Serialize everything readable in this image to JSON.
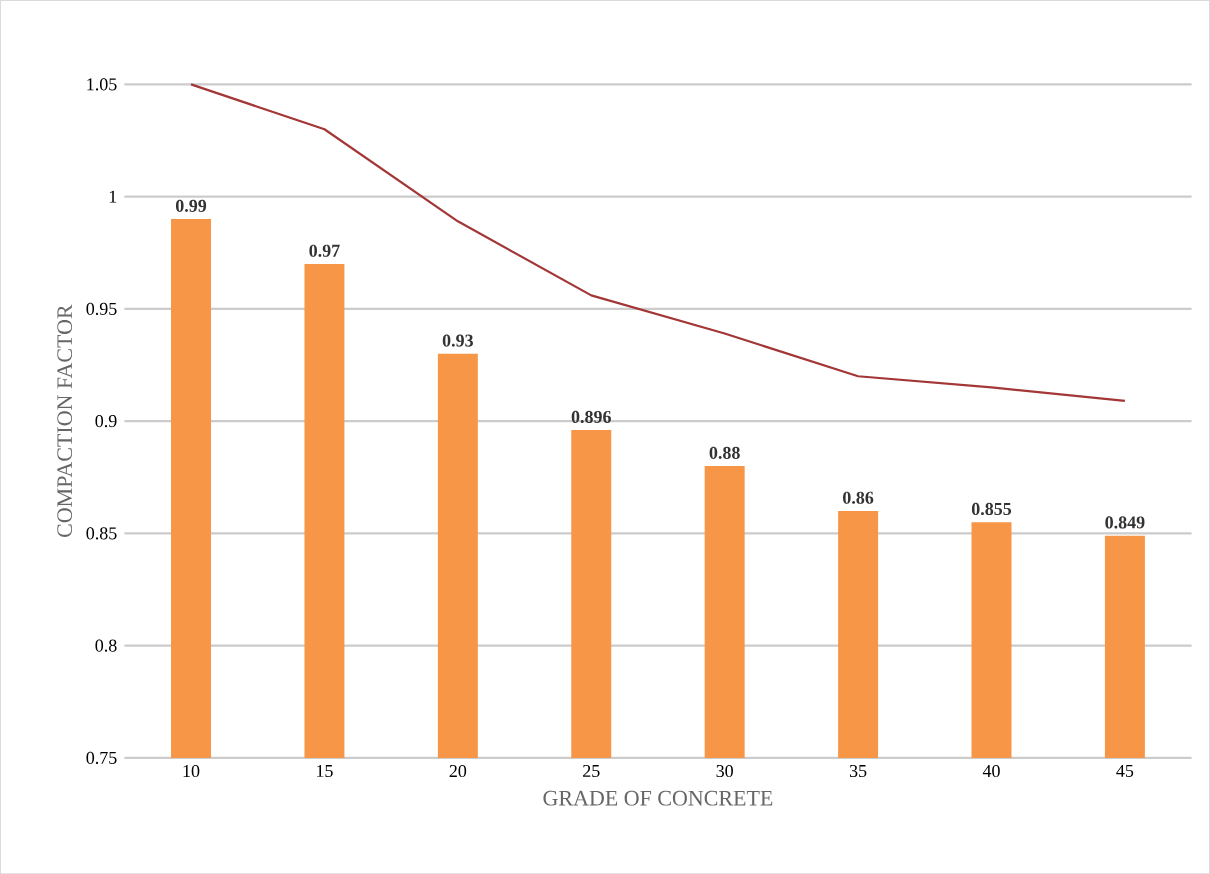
{
  "chart_data": {
    "type": "bar",
    "xlabel": "GRADE OF CONCRETE",
    "ylabel": "COMPACTION FACTOR",
    "categories": [
      "10",
      "15",
      "20",
      "25",
      "30",
      "35",
      "40",
      "45"
    ],
    "series": [
      {
        "color": "#f79646",
        "values": [
          0.99,
          0.97,
          0.93,
          0.896,
          0.88,
          0.86,
          0.855,
          0.849
        ],
        "value_labels": [
          "0.99",
          "0.97",
          "0.93",
          "0.896",
          "0.88",
          "0.86",
          "0.855",
          "0.849"
        ]
      },
      {
        "type": "line",
        "color": "#a33636",
        "values": [
          1.05,
          1.03,
          0.989,
          0.956,
          0.939,
          0.92,
          0.915,
          0.909
        ]
      }
    ],
    "ylim": [
      0.75,
      1.05
    ],
    "yticks": [
      0.75,
      0.8,
      0.85,
      0.9,
      0.95,
      1,
      1.05
    ],
    "grid": "y"
  }
}
